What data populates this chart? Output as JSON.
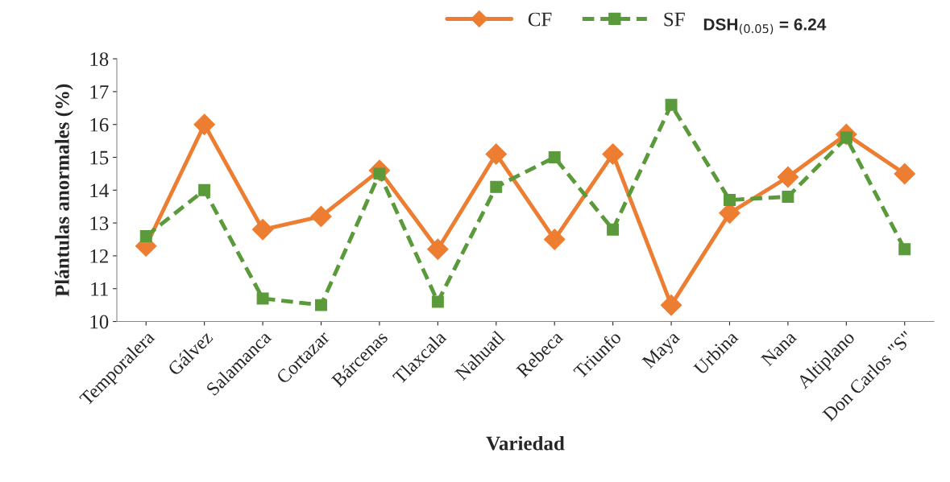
{
  "chart_data": {
    "type": "line",
    "xlabel": "Variedad",
    "ylabel": "Plántulas anormales (%)",
    "categories": [
      "Temporalera",
      "Gálvez",
      "Salamanca",
      "Cortazar",
      "Bárcenas",
      "Tlaxcala",
      "Nahuatl",
      "Rebeca",
      "Triunfo",
      "Maya",
      "Urbina",
      "Nana",
      "Altiplano",
      "Don Carlos \"S\""
    ],
    "series": [
      {
        "name": "CF",
        "color": "#ed7d31",
        "marker": "diamond",
        "line_style": "solid",
        "values": [
          12.3,
          16.0,
          12.8,
          13.2,
          14.6,
          12.2,
          15.1,
          12.5,
          15.1,
          10.5,
          13.3,
          14.4,
          15.7,
          14.5
        ]
      },
      {
        "name": "SF",
        "color": "#5a9a3a",
        "marker": "square",
        "line_style": "dashed",
        "values": [
          12.6,
          14.0,
          10.7,
          10.5,
          14.5,
          10.6,
          14.1,
          15.0,
          12.8,
          16.6,
          13.7,
          13.8,
          15.6,
          12.2
        ]
      }
    ],
    "ylim": [
      10,
      18
    ],
    "yticks": [
      10,
      11,
      12,
      13,
      14,
      15,
      16,
      17,
      18
    ],
    "grid": false,
    "legend": "top",
    "annotations": [
      "DSH$_{(0.05)}$ = 6.24"
    ]
  }
}
